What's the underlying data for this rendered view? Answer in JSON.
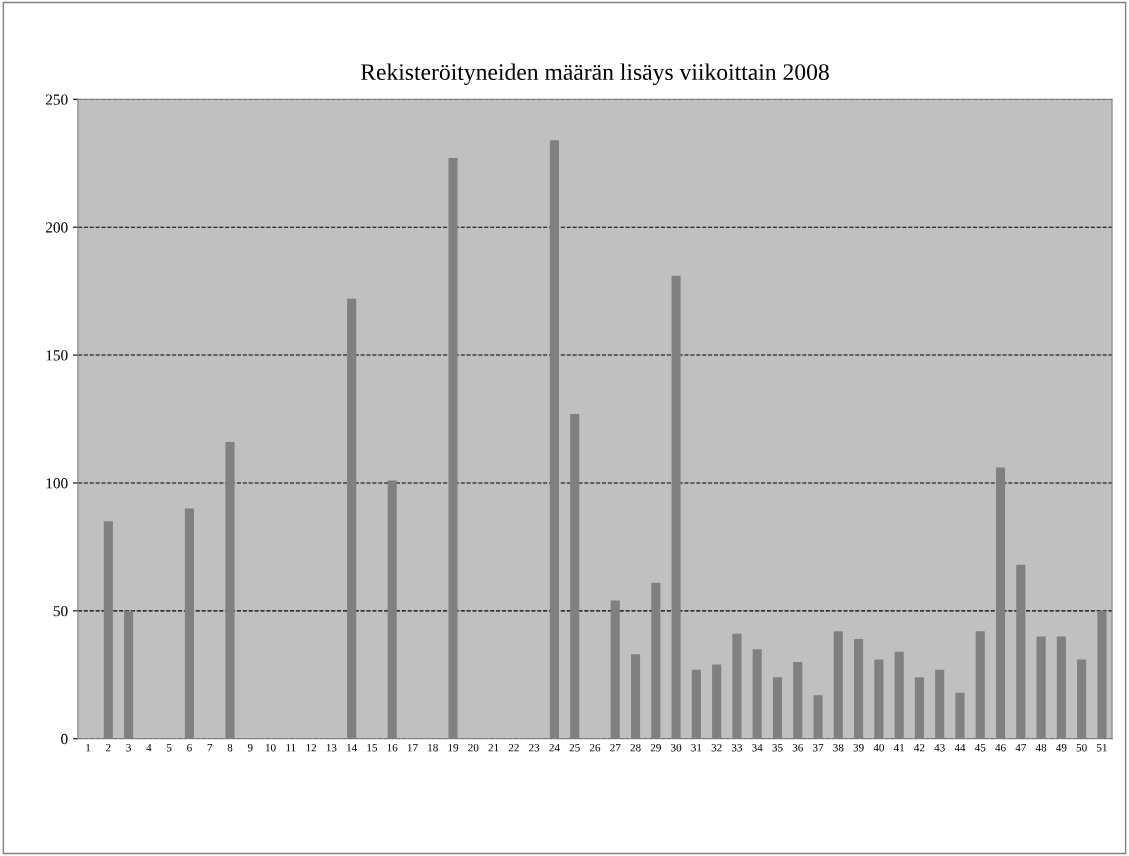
{
  "chart_data": {
    "type": "bar",
    "title": "Rekisteröityneiden määrän lisäys viikoittain 2008",
    "categories": [
      "1",
      "2",
      "3",
      "4",
      "5",
      "6",
      "7",
      "8",
      "9",
      "10",
      "11",
      "12",
      "13",
      "14",
      "15",
      "16",
      "17",
      "18",
      "19",
      "20",
      "21",
      "22",
      "23",
      "24",
      "25",
      "26",
      "27",
      "28",
      "29",
      "30",
      "31",
      "32",
      "33",
      "34",
      "35",
      "36",
      "37",
      "38",
      "39",
      "40",
      "41",
      "42",
      "43",
      "44",
      "45",
      "46",
      "47",
      "48",
      "49",
      "50",
      "51"
    ],
    "values": [
      0,
      85,
      50,
      0,
      0,
      90,
      0,
      116,
      0,
      0,
      0,
      0,
      0,
      172,
      0,
      101,
      0,
      0,
      227,
      0,
      0,
      0,
      0,
      234,
      127,
      0,
      54,
      33,
      61,
      181,
      27,
      29,
      41,
      35,
      24,
      30,
      17,
      42,
      39,
      31,
      34,
      24,
      27,
      18,
      42,
      106,
      68,
      40,
      40,
      31,
      50
    ],
    "color": "#808080",
    "ylim": [
      0,
      250
    ],
    "yticks": [
      0,
      50,
      100,
      150,
      200,
      250
    ],
    "grid": "y"
  }
}
